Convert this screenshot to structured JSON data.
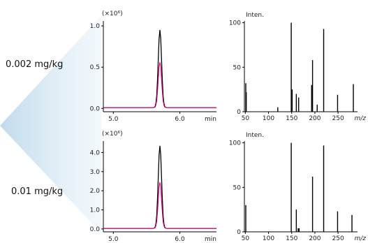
{
  "rows": [
    {
      "concentration": "0.002 mg/kg",
      "chromatogram": {
        "type": "line",
        "scale_label": "(×10⁶)",
        "x_unit": "min",
        "xlim": [
          4.85,
          6.55
        ],
        "ylim": [
          -0.04,
          1.06
        ],
        "x_ticks": [
          {
            "value": 5.0,
            "label": "5.0"
          },
          {
            "value": 6.0,
            "label": "6.0"
          }
        ],
        "y_ticks": [
          {
            "value": 0.0,
            "label": "0.0"
          },
          {
            "value": 0.5,
            "label": "0.5"
          },
          {
            "value": 1.0,
            "label": "1.0"
          }
        ],
        "series": [
          {
            "color": "#000000",
            "baseline": 0.01,
            "peak_x": 5.7,
            "peak_y": 0.95,
            "width": 0.025
          },
          {
            "color": "#d6007e",
            "baseline": 0.01,
            "peak_x": 5.7,
            "peak_y": 0.56,
            "width": 0.025
          }
        ]
      },
      "spectrum": {
        "type": "bar",
        "y_title": "Inten.",
        "x_unit": "m/z",
        "xlim": [
          48,
          292
        ],
        "ylim": [
          0,
          102
        ],
        "x_ticks": [
          {
            "value": 50,
            "label": "50"
          },
          {
            "value": 100,
            "label": "100"
          },
          {
            "value": 150,
            "label": "150"
          },
          {
            "value": 200,
            "label": "200"
          },
          {
            "value": 250,
            "label": "250"
          }
        ],
        "y_ticks": [
          {
            "value": 0,
            "label": "0"
          },
          {
            "value": 50,
            "label": "50"
          },
          {
            "value": 100,
            "label": "100"
          }
        ],
        "peaks": [
          {
            "mz": 51,
            "intensity": 32
          },
          {
            "mz": 52,
            "intensity": 22
          },
          {
            "mz": 120,
            "intensity": 5
          },
          {
            "mz": 149,
            "intensity": 100
          },
          {
            "mz": 151,
            "intensity": 25
          },
          {
            "mz": 160,
            "intensity": 20
          },
          {
            "mz": 165,
            "intensity": 16
          },
          {
            "mz": 193,
            "intensity": 30
          },
          {
            "mz": 195,
            "intensity": 58
          },
          {
            "mz": 205,
            "intensity": 8
          },
          {
            "mz": 219,
            "intensity": 93
          },
          {
            "mz": 249,
            "intensity": 19
          },
          {
            "mz": 283,
            "intensity": 31
          }
        ]
      }
    },
    {
      "concentration": "0.01 mg/kg",
      "chromatogram": {
        "type": "line",
        "scale_label": "(×10⁶)",
        "x_unit": "min",
        "xlim": [
          4.85,
          6.55
        ],
        "ylim": [
          -0.15,
          4.6
        ],
        "x_ticks": [
          {
            "value": 5.0,
            "label": "5.0"
          },
          {
            "value": 6.0,
            "label": "6.0"
          }
        ],
        "y_ticks": [
          {
            "value": 0.0,
            "label": "0.0"
          },
          {
            "value": 1.0,
            "label": "1.0"
          },
          {
            "value": 2.0,
            "label": "2.0"
          },
          {
            "value": 3.0,
            "label": "3.0"
          },
          {
            "value": 4.0,
            "label": "4.0"
          }
        ],
        "series": [
          {
            "color": "#000000",
            "baseline": 0.03,
            "peak_x": 5.7,
            "peak_y": 4.35,
            "width": 0.025
          },
          {
            "color": "#d6007e",
            "baseline": 0.03,
            "peak_x": 5.7,
            "peak_y": 2.45,
            "width": 0.025
          }
        ]
      },
      "spectrum": {
        "type": "bar",
        "y_title": "Inten.",
        "x_unit": "m/z",
        "xlim": [
          48,
          292
        ],
        "ylim": [
          0,
          102
        ],
        "x_ticks": [
          {
            "value": 50,
            "label": "50"
          },
          {
            "value": 100,
            "label": "100"
          },
          {
            "value": 150,
            "label": "150"
          },
          {
            "value": 200,
            "label": "200"
          },
          {
            "value": 250,
            "label": "250"
          }
        ],
        "y_ticks": [
          {
            "value": 0,
            "label": "0"
          },
          {
            "value": 50,
            "label": "50"
          },
          {
            "value": 100,
            "label": "100"
          }
        ],
        "peaks": [
          {
            "mz": 51,
            "intensity": 30
          },
          {
            "mz": 149,
            "intensity": 100
          },
          {
            "mz": 160,
            "intensity": 25
          },
          {
            "mz": 164,
            "intensity": 4
          },
          {
            "mz": 166,
            "intensity": 4
          },
          {
            "mz": 195,
            "intensity": 62
          },
          {
            "mz": 219,
            "intensity": 97
          },
          {
            "mz": 249,
            "intensity": 23
          },
          {
            "mz": 280,
            "intensity": 19
          }
        ]
      }
    }
  ]
}
